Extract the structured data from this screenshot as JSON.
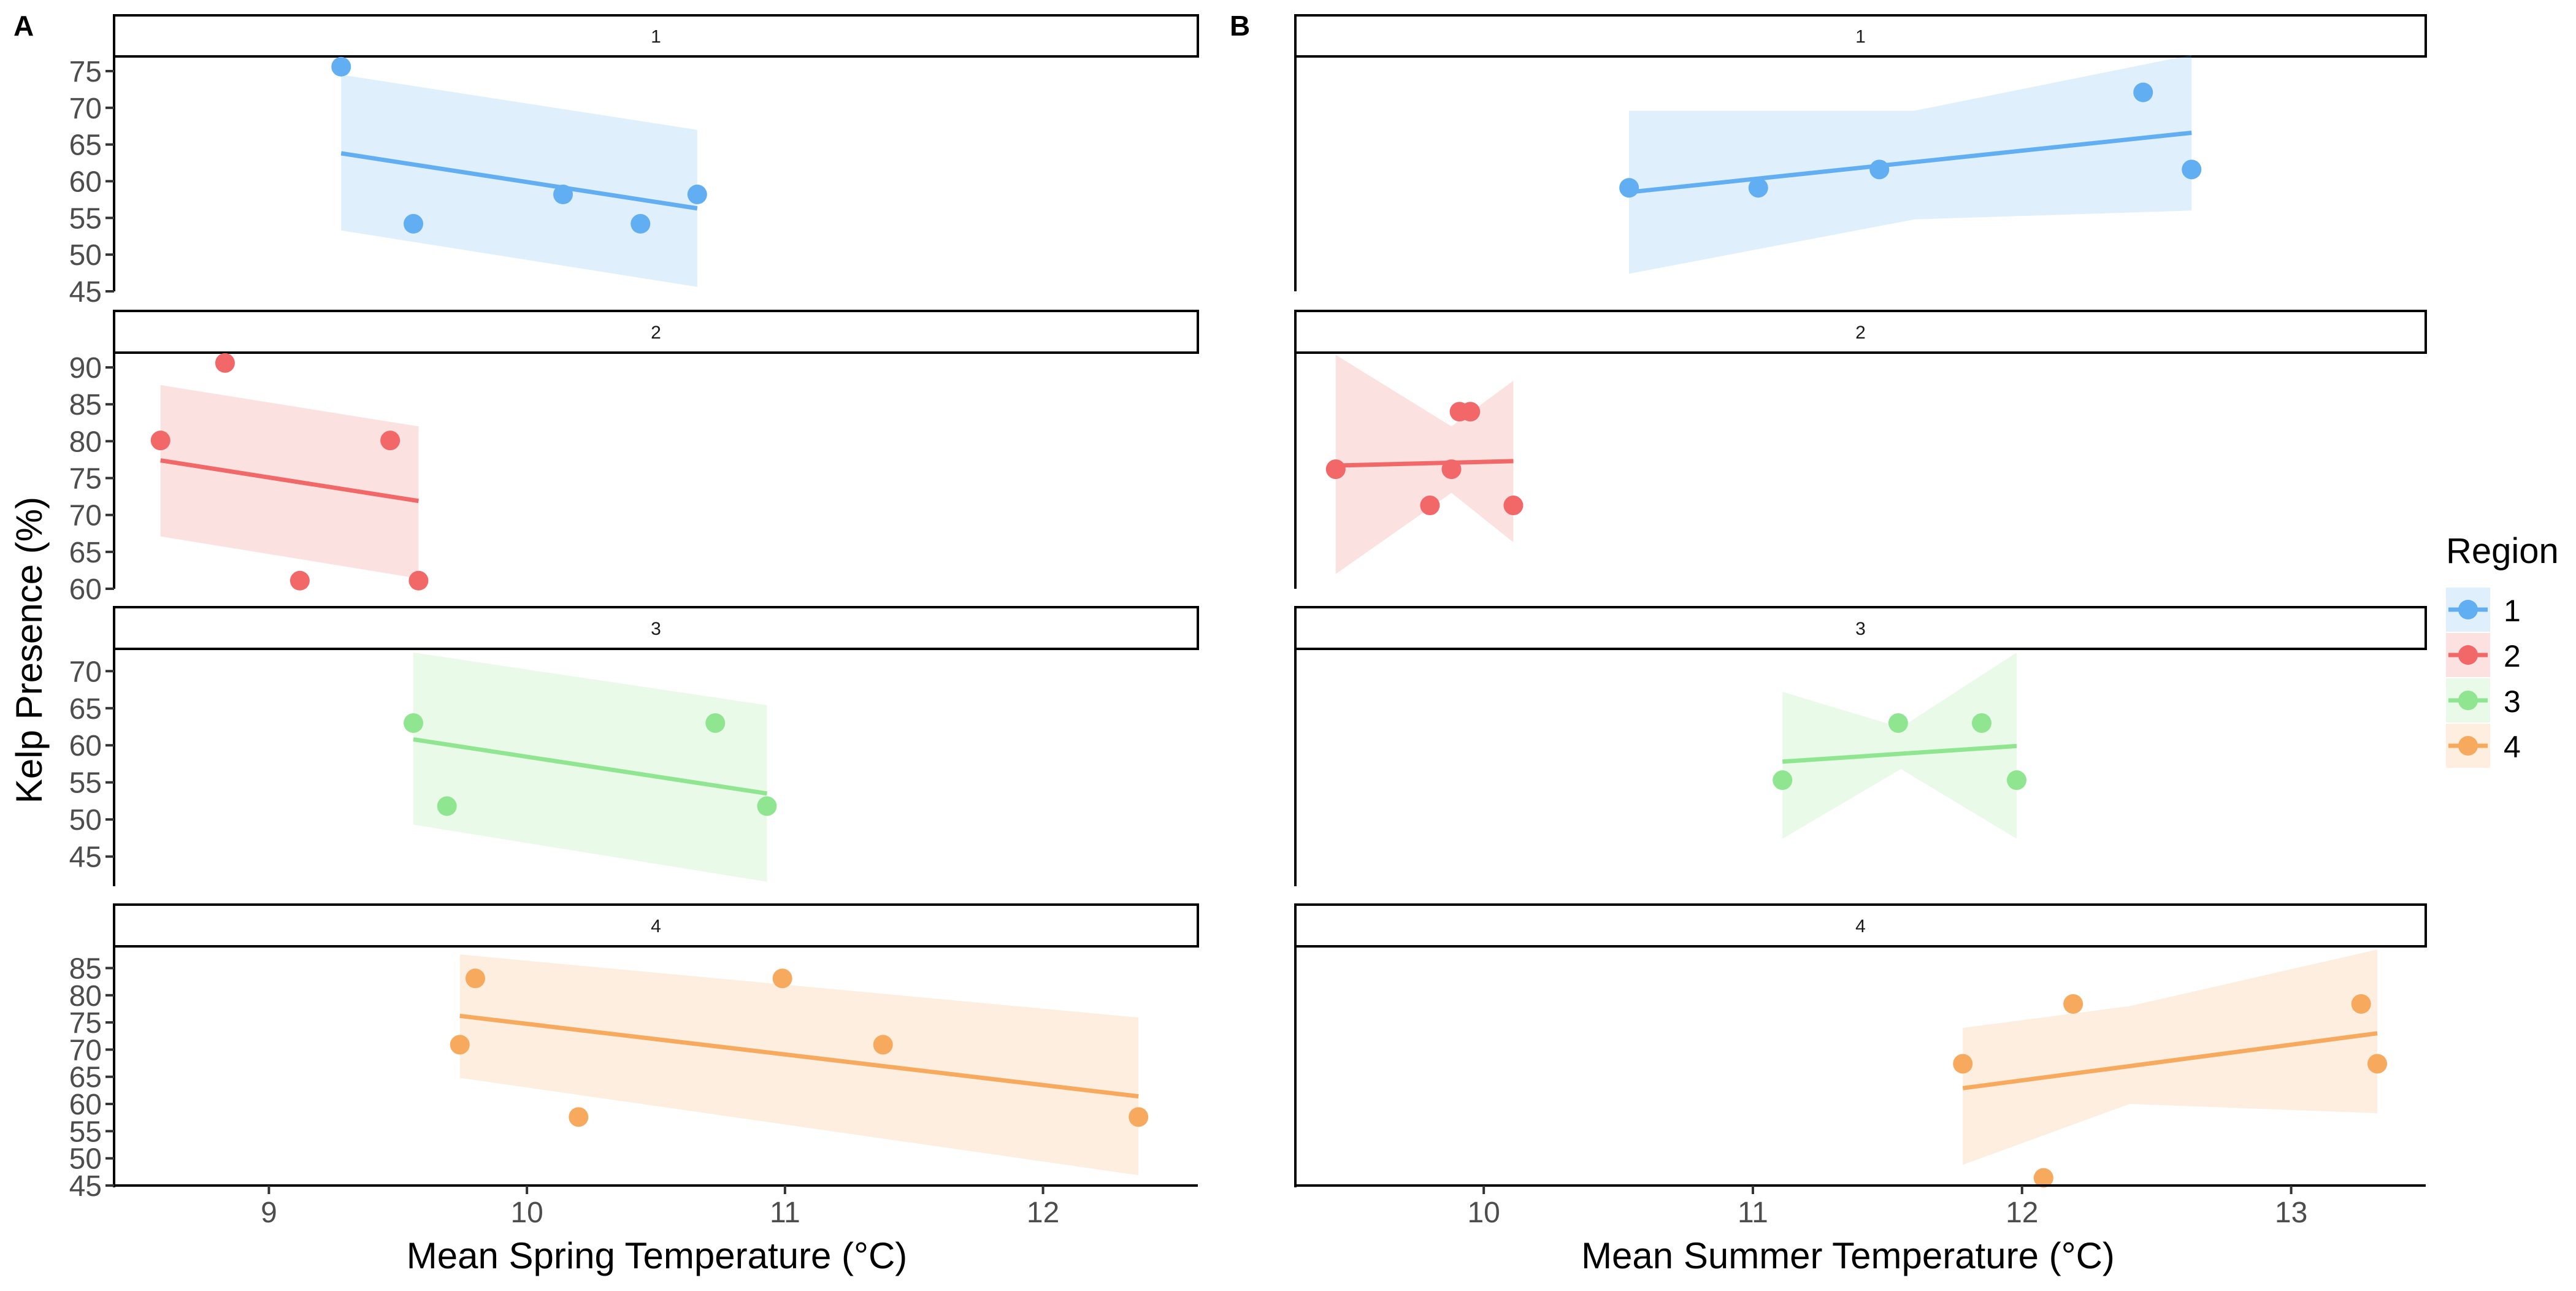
{
  "figure": {
    "ylabel": "Kelp Presence (%)",
    "legend": {
      "title": "Region",
      "placement": "right",
      "entries": [
        {
          "label": "1",
          "color": "#61AFF2"
        },
        {
          "label": "2",
          "color": "#F26767"
        },
        {
          "label": "3",
          "color": "#90E690"
        },
        {
          "label": "4",
          "color": "#F7AA5E"
        }
      ]
    },
    "strip_labels": [
      "1",
      "2",
      "3",
      "4"
    ]
  },
  "chart_data": [
    {
      "type": "scatter",
      "panel_tag": "A",
      "xlabel": "Mean Spring Temperature (°C)",
      "ylabel": "Kelp Presence (%)",
      "xlim": [
        8.4,
        12.6
      ],
      "xticks": [
        9,
        10,
        11,
        12
      ],
      "grid": false,
      "facets": [
        {
          "strip": "1",
          "ylim": [
            45,
            77
          ],
          "yticks": [
            45,
            50,
            55,
            60,
            65,
            70,
            75
          ],
          "points": [
            [
              9.28,
              75.6
            ],
            [
              9.56,
              54.2
            ],
            [
              10.14,
              58.2
            ],
            [
              10.44,
              54.2
            ],
            [
              10.66,
              58.2
            ]
          ],
          "fit": {
            "x": [
              9.28,
              10.66
            ],
            "y": [
              63.8,
              56.3
            ]
          },
          "band": {
            "x": [
              9.28,
              10.66
            ],
            "upper": [
              74.5,
              67.0
            ],
            "lower": [
              53.3,
              45.6
            ]
          }
        },
        {
          "strip": "2",
          "ylim": [
            60,
            92
          ],
          "yticks": [
            60,
            65,
            70,
            75,
            80,
            85,
            90
          ],
          "points": [
            [
              8.58,
              80.1
            ],
            [
              8.83,
              90.6
            ],
            [
              9.12,
              61.1
            ],
            [
              9.47,
              80.1
            ],
            [
              9.58,
              61.1
            ]
          ],
          "fit": {
            "x": [
              8.58,
              9.58
            ],
            "y": [
              77.4,
              71.9
            ]
          },
          "band": {
            "x": [
              8.58,
              9.58
            ],
            "upper": [
              87.6,
              82.0
            ],
            "lower": [
              67.1,
              61.4
            ]
          }
        },
        {
          "strip": "3",
          "ylim": [
            41,
            73
          ],
          "yticks": [
            45,
            50,
            55,
            60,
            65,
            70
          ],
          "points": [
            [
              9.56,
              63.0
            ],
            [
              9.69,
              51.8
            ],
            [
              10.73,
              63.0
            ],
            [
              10.93,
              51.8
            ]
          ],
          "fit": {
            "x": [
              9.56,
              10.93
            ],
            "y": [
              60.8,
              53.5
            ]
          },
          "band": {
            "x": [
              9.56,
              10.93
            ],
            "upper": [
              72.5,
              65.4
            ],
            "lower": [
              49.3,
              41.6
            ]
          }
        },
        {
          "strip": "4",
          "ylim": [
            45,
            89
          ],
          "yticks": [
            45,
            50,
            55,
            60,
            65,
            70,
            75,
            80,
            85
          ],
          "points": [
            [
              9.74,
              70.9
            ],
            [
              9.8,
              83.1
            ],
            [
              10.2,
              57.6
            ],
            [
              10.99,
              83.1
            ],
            [
              11.38,
              70.9
            ],
            [
              12.37,
              57.6
            ]
          ],
          "fit": {
            "x": [
              9.74,
              12.37
            ],
            "y": [
              76.2,
              61.4
            ]
          },
          "band": {
            "x": [
              9.74,
              12.37
            ],
            "upper": [
              87.5,
              75.9
            ],
            "lower": [
              64.8,
              46.9
            ]
          }
        }
      ]
    },
    {
      "type": "scatter",
      "panel_tag": "B",
      "xlabel": "Mean Summer Temperature (°C)",
      "ylabel": "",
      "xlim": [
        9.3,
        13.5
      ],
      "xticks": [
        10,
        11,
        12,
        13
      ],
      "grid": false,
      "facets": [
        {
          "strip": "1",
          "ylim": [
            45,
            77
          ],
          "points": [
            [
              10.54,
              59.1
            ],
            [
              11.02,
              59.1
            ],
            [
              11.47,
              61.6
            ],
            [
              12.45,
              72.1
            ],
            [
              12.63,
              61.6
            ]
          ],
          "fit": {
            "x": [
              10.54,
              12.63
            ],
            "y": [
              58.5,
              66.6
            ]
          },
          "band": {
            "x": [
              10.54,
              11.6,
              12.63
            ],
            "upper": [
              69.6,
              69.6,
              77.2
            ],
            "lower": [
              47.4,
              54.8,
              56.0
            ]
          }
        },
        {
          "strip": "2",
          "ylim": [
            60,
            92
          ],
          "points": [
            [
              9.45,
              76.2
            ],
            [
              9.8,
              71.3
            ],
            [
              9.88,
              76.2
            ],
            [
              9.91,
              84.0
            ],
            [
              9.95,
              84.0
            ],
            [
              10.11,
              71.3
            ]
          ],
          "fit": {
            "x": [
              9.45,
              10.11
            ],
            "y": [
              76.7,
              77.3
            ]
          },
          "band": {
            "x": [
              9.45,
              9.88,
              10.11
            ],
            "upper": [
              91.7,
              82.0,
              88.2
            ],
            "lower": [
              62.0,
              73.0,
              66.3
            ]
          }
        },
        {
          "strip": "3",
          "ylim": [
            41,
            73
          ],
          "points": [
            [
              11.11,
              55.3
            ],
            [
              11.54,
              63.0
            ],
            [
              11.85,
              63.0
            ],
            [
              11.98,
              55.3
            ]
          ],
          "fit": {
            "x": [
              11.11,
              11.98
            ],
            "y": [
              57.8,
              59.9
            ]
          },
          "band": {
            "x": [
              11.11,
              11.55,
              11.98
            ],
            "upper": [
              67.2,
              62.4,
              72.5
            ],
            "lower": [
              47.4,
              56.8,
              47.4
            ]
          }
        },
        {
          "strip": "4",
          "ylim": [
            45,
            89
          ],
          "points": [
            [
              11.78,
              67.4
            ],
            [
              12.08,
              46.4
            ],
            [
              12.19,
              78.4
            ],
            [
              13.26,
              78.4
            ],
            [
              13.32,
              67.4
            ]
          ],
          "fit": {
            "x": [
              11.78,
              13.32
            ],
            "y": [
              62.9,
              73.0
            ]
          },
          "band": {
            "x": [
              11.78,
              12.4,
              13.32
            ],
            "upper": [
              74.0,
              78.0,
              88.4
            ],
            "lower": [
              48.8,
              60.0,
              58.3
            ]
          }
        }
      ]
    }
  ]
}
